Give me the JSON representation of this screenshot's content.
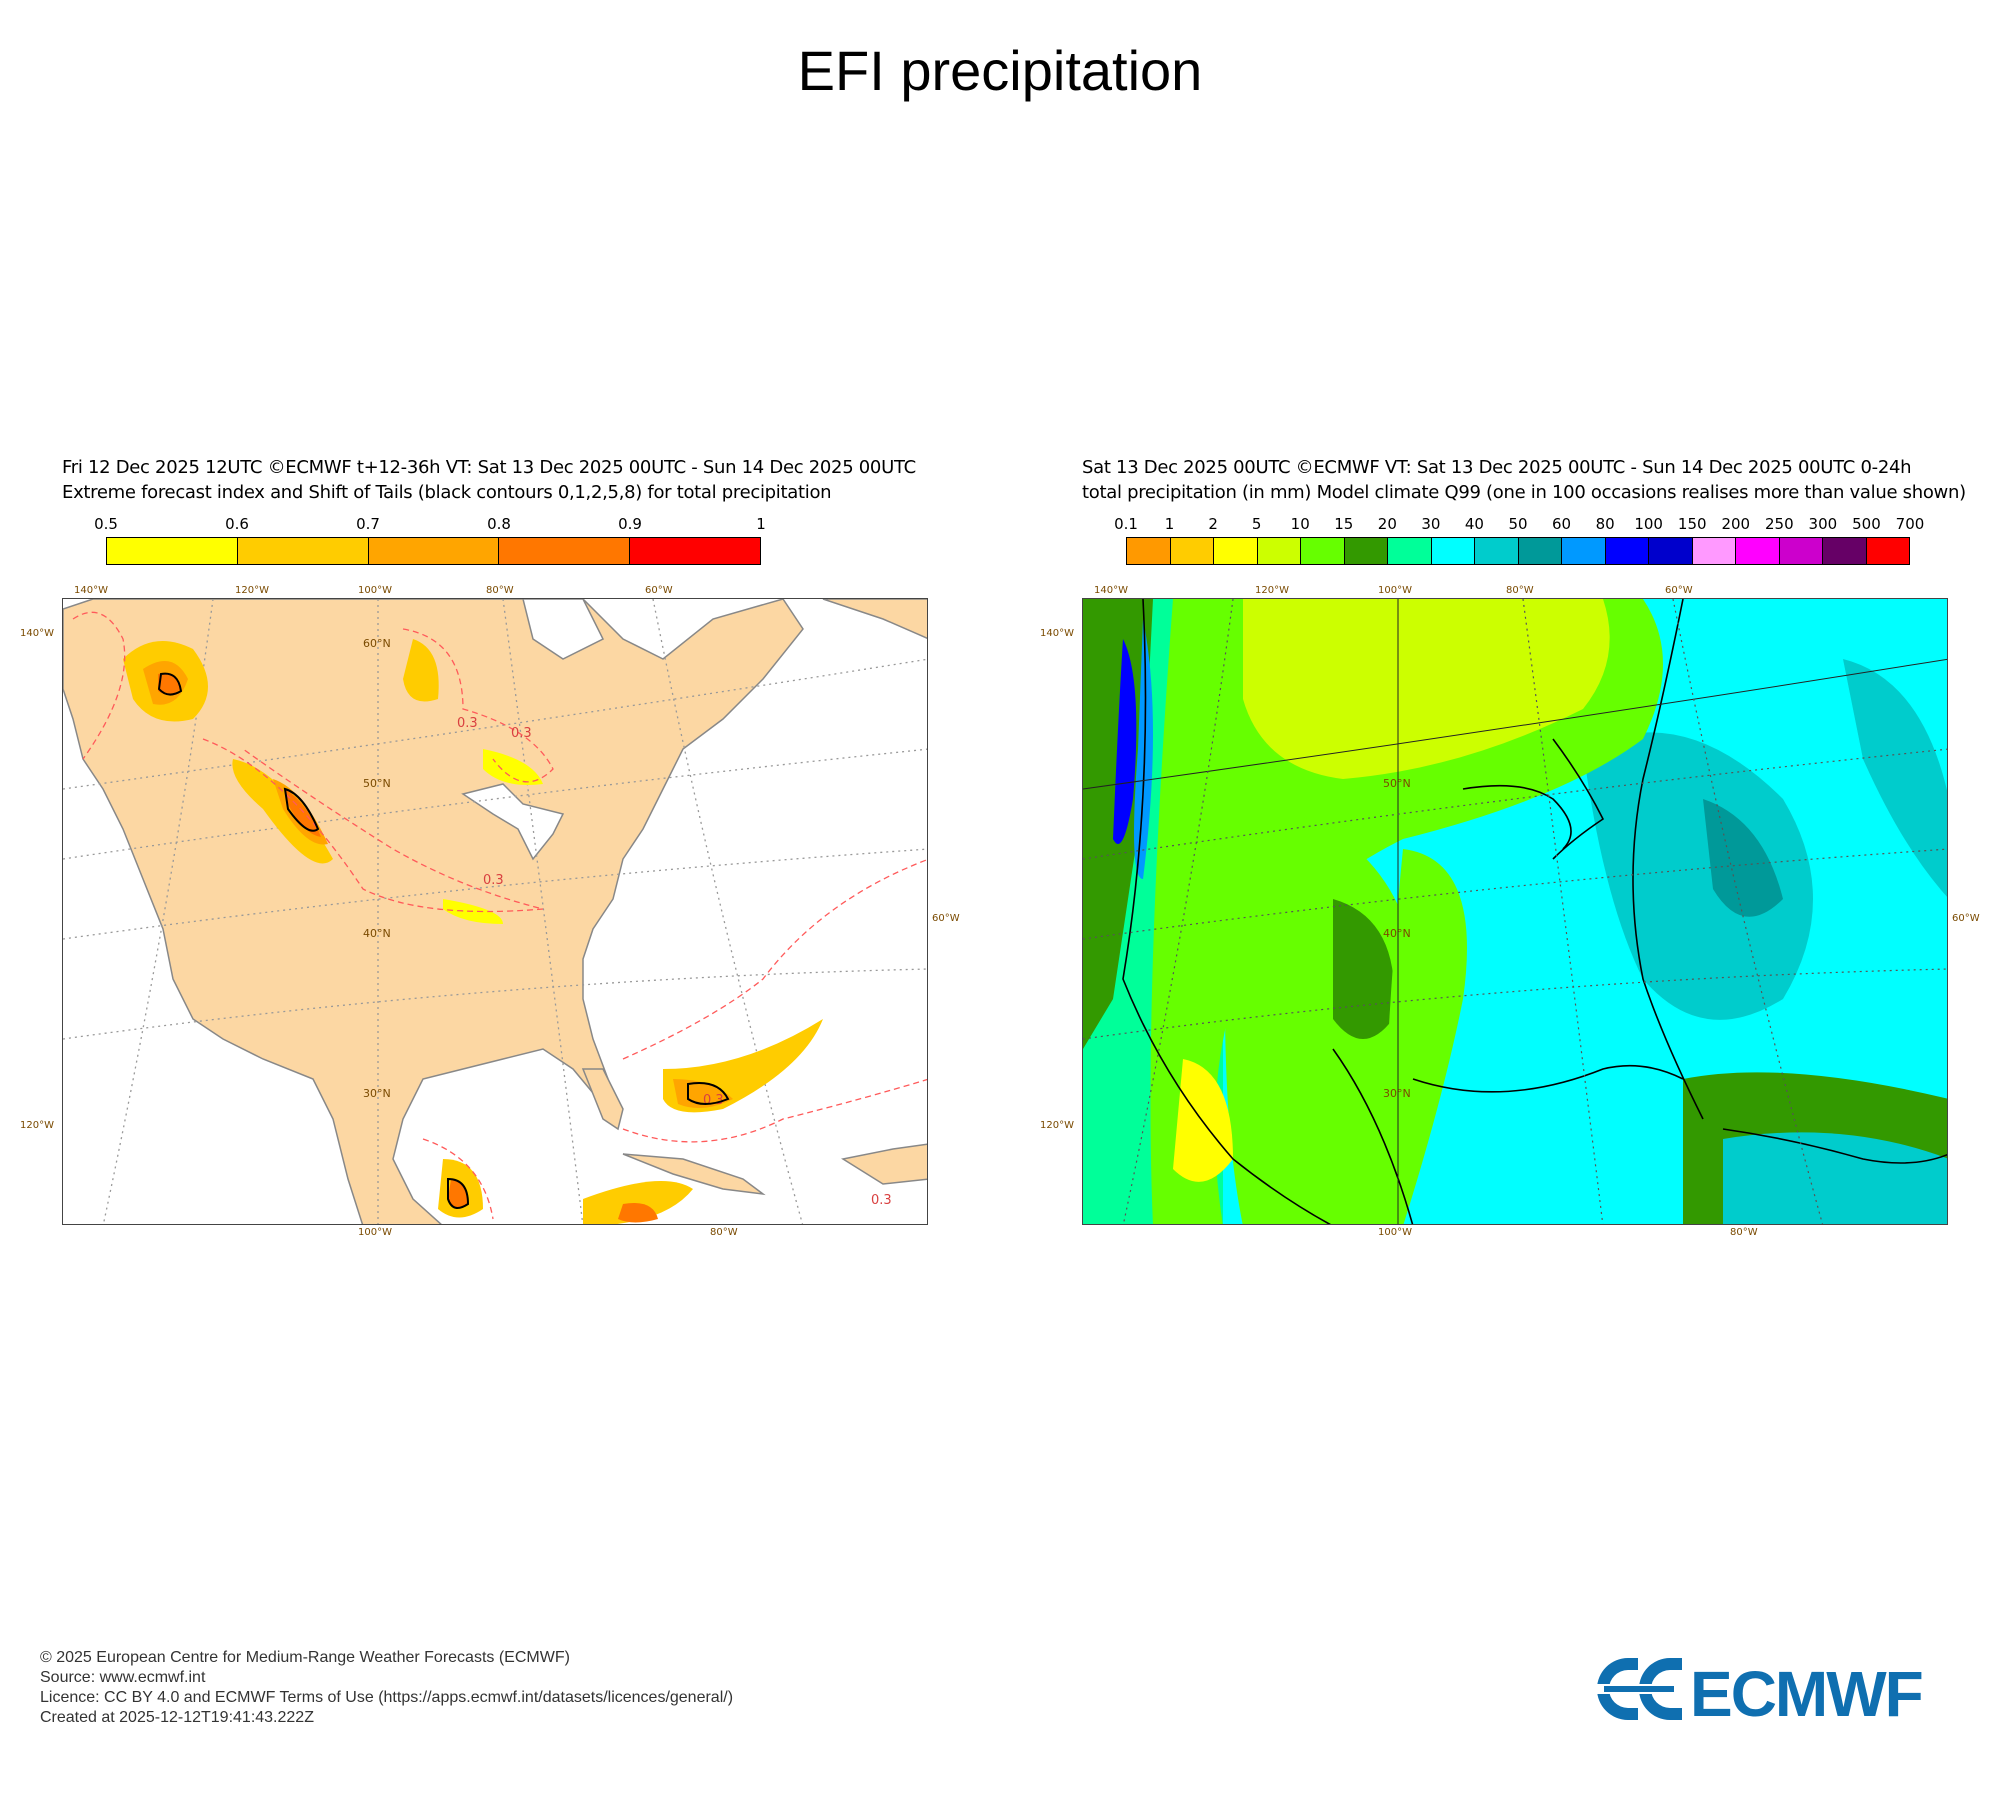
{
  "page_title": "EFI precipitation",
  "left_panel": {
    "header_line1": "Fri 12 Dec 2025 12UTC ©ECMWF t+12-36h  VT: Sat 13 Dec 2025 00UTC - Sun 14 Dec 2025 00UTC",
    "header_line2": "Extreme forecast index and Shift of Tails (black contours 0,1,2,5,8) for total precipitation",
    "colorbar_labels": [
      "0.5",
      "0.6",
      "0.7",
      "0.8",
      "0.9",
      "1"
    ],
    "colorbar_colors": [
      "#ffff00",
      "#ffcc00",
      "#ffa500",
      "#ff7700",
      "#ff0000"
    ],
    "contour_label": "0.3",
    "lat_labels": [
      "60°N",
      "50°N",
      "40°N",
      "30°N"
    ],
    "lon_labels_top": [
      "140°W",
      "120°W",
      "100°W",
      "80°W",
      "60°W"
    ],
    "lon_labels_bottom": [
      "100°W",
      "80°W"
    ],
    "lon_labels_left": [
      "140°W",
      "120°W"
    ],
    "lon_labels_right": [
      "60°W"
    ]
  },
  "right_panel": {
    "header_line1": "Sat 13 Dec 2025 00UTC ©ECMWF VT: Sat 13 Dec 2025 00UTC - Sun 14 Dec 2025 00UTC   0-24h",
    "header_line2": "total precipitation (in mm)  Model climate Q99 (one in 100 occasions realises more than value shown)",
    "colorbar_labels": [
      "0.1",
      "1",
      "2",
      "5",
      "10",
      "15",
      "20",
      "30",
      "40",
      "50",
      "60",
      "80",
      "100",
      "150",
      "200",
      "250",
      "300",
      "500",
      "700"
    ],
    "colorbar_colors": [
      "#ff9900",
      "#ffcc00",
      "#ffff00",
      "#ccff00",
      "#66ff00",
      "#339900",
      "#00ff99",
      "#00ffff",
      "#00cccc",
      "#009999",
      "#0099ff",
      "#0000ff",
      "#0000cc",
      "#ff99ff",
      "#ff00ff",
      "#cc00cc",
      "#660066",
      "#ff0000"
    ],
    "lat_labels": [
      "50°N",
      "40°N",
      "30°N"
    ],
    "lon_labels_top": [
      "140°W",
      "120°W",
      "100°W",
      "80°W",
      "60°W"
    ],
    "lon_labels_bottom": [
      "100°W",
      "80°W"
    ],
    "lon_labels_left": [
      "140°W",
      "120°W"
    ],
    "lon_labels_right": [
      "60°W"
    ]
  },
  "footer": {
    "line1": "© 2025 European Centre for Medium-Range Weather Forecasts (ECMWF)",
    "line2": "Source: www.ecmwf.int",
    "line3": "Licence: CC BY 4.0 and ECMWF Terms of Use (https://apps.ecmwf.int/datasets/licences/general/)",
    "line4": "Created at 2025-12-12T19:41:43.222Z"
  },
  "logo": {
    "text": "ECMWF",
    "color": "#0f6fb0"
  }
}
